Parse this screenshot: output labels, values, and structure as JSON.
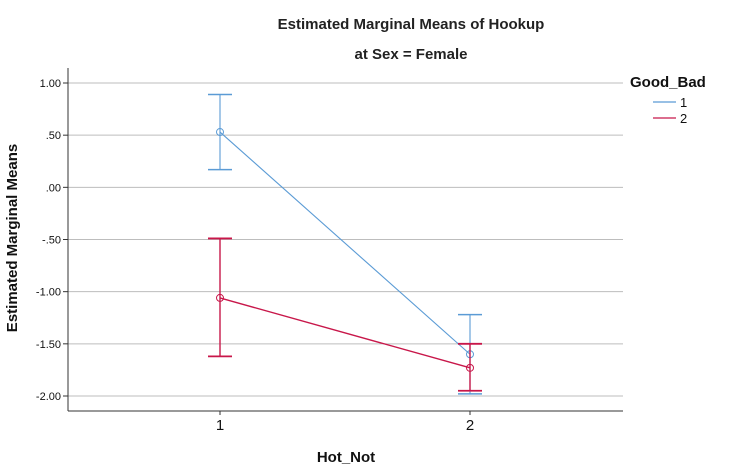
{
  "chart_data": {
    "type": "line",
    "title": "Estimated Marginal Means of Hookup",
    "subtitle": "at Sex = Female",
    "xlabel": "Hot_Not",
    "ylabel": "Estimated Marginal Means",
    "categories": [
      "1",
      "2"
    ],
    "ylim": [
      -2.15,
      1.15
    ],
    "yticks": [
      1.0,
      0.5,
      0.0,
      -0.5,
      -1.0,
      -1.5,
      -2.0
    ],
    "ytick_labels": [
      "1.00",
      ".50",
      ".00",
      "-.50",
      "-1.00",
      "-1.50",
      "-2.00"
    ],
    "grid": true,
    "legend": {
      "title": "Good_Bad",
      "placement": "right"
    },
    "series": [
      {
        "name": "1",
        "color": "#5b9bd5",
        "values": [
          0.53,
          -1.6
        ],
        "error_low": [
          0.17,
          -1.98
        ],
        "error_high": [
          0.89,
          -1.22
        ]
      },
      {
        "name": "2",
        "color": "#c8174a",
        "values": [
          -1.06,
          -1.73
        ],
        "error_low": [
          -1.62,
          -1.95
        ],
        "error_high": [
          -0.49,
          -1.5
        ]
      }
    ]
  }
}
